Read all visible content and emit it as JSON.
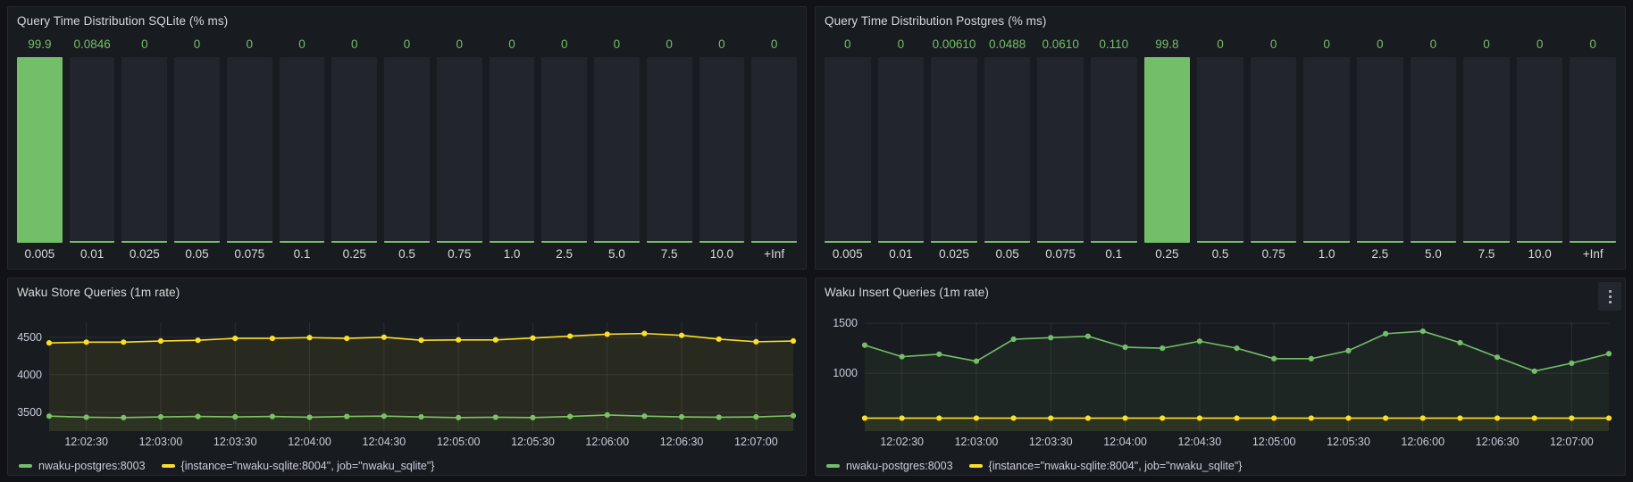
{
  "colors": {
    "page_bg": "#111217",
    "panel_bg": "#181b1f",
    "panel_border": "#26282f",
    "bar_bg": "#22252b",
    "green": "#73bf69",
    "yellow": "#fade2a",
    "axis_text": "#ccccdc",
    "title_text": "#d8d9da",
    "grid": "rgba(204,204,220,0.10)"
  },
  "panels": [
    {
      "title": "Query Time Distribution SQLite (% ms)"
    },
    {
      "title": "Query Time Distribution Postgres (% ms)"
    },
    {
      "title": "Waku Store Queries (1m rate)"
    },
    {
      "title": "Waku Insert Queries (1m rate)"
    }
  ],
  "chart_data": [
    {
      "type": "bar",
      "title": "Query Time Distribution SQLite (% ms)",
      "categories": [
        "0.005",
        "0.01",
        "0.025",
        "0.05",
        "0.075",
        "0.1",
        "0.25",
        "0.5",
        "0.75",
        "1.0",
        "2.5",
        "5.0",
        "7.5",
        "10.0",
        "+Inf"
      ],
      "values": [
        99.9,
        0.0846,
        0,
        0,
        0,
        0,
        0,
        0,
        0,
        0,
        0,
        0,
        0,
        0,
        0
      ],
      "value_labels": [
        "99.9",
        "0.0846",
        "0",
        "0",
        "0",
        "0",
        "0",
        "0",
        "0",
        "0",
        "0",
        "0",
        "0",
        "0",
        "0"
      ],
      "ylim": [
        0,
        100
      ],
      "bar_color": "#73bf69",
      "value_label_color": "#73bf69"
    },
    {
      "type": "bar",
      "title": "Query Time Distribution Postgres (% ms)",
      "categories": [
        "0.005",
        "0.01",
        "0.025",
        "0.05",
        "0.075",
        "0.1",
        "0.25",
        "0.5",
        "0.75",
        "1.0",
        "2.5",
        "5.0",
        "7.5",
        "10.0",
        "+Inf"
      ],
      "values": [
        0,
        0,
        0.0061,
        0.0488,
        0.061,
        0.11,
        99.8,
        0,
        0,
        0,
        0,
        0,
        0,
        0,
        0
      ],
      "value_labels": [
        "0",
        "0",
        "0.00610",
        "0.0488",
        "0.0610",
        "0.110",
        "99.8",
        "0",
        "0",
        "0",
        "0",
        "0",
        "0",
        "0",
        "0"
      ],
      "ylim": [
        0,
        100
      ],
      "bar_color": "#73bf69",
      "value_label_color": "#73bf69"
    },
    {
      "type": "line",
      "title": "Waku Store Queries (1m rate)",
      "x_tick_labels": [
        "12:02:30",
        "12:03:00",
        "12:03:30",
        "12:04:00",
        "12:04:30",
        "12:05:00",
        "12:05:30",
        "12:06:00",
        "12:06:30",
        "12:07:00"
      ],
      "x_tick_indices": [
        1,
        3,
        5,
        7,
        9,
        11,
        13,
        15,
        17,
        19
      ],
      "yticks": [
        3500,
        4000,
        4500
      ],
      "ytick_labels": [
        "3500",
        "4000",
        "4500"
      ],
      "ylim": [
        3250,
        4700
      ],
      "legend_position": "bottom",
      "grid": true,
      "series": [
        {
          "name": "nwaku-postgres:8003",
          "color": "#73bf69",
          "values": [
            3450,
            3435,
            3430,
            3440,
            3445,
            3440,
            3445,
            3435,
            3445,
            3450,
            3440,
            3430,
            3435,
            3430,
            3445,
            3465,
            3450,
            3440,
            3435,
            3440,
            3455
          ]
        },
        {
          "name": "{instance=\"nwaku-sqlite:8004\", job=\"nwaku_sqlite\"}",
          "color": "#fade2a",
          "values": [
            4425,
            4435,
            4435,
            4450,
            4460,
            4485,
            4485,
            4495,
            4485,
            4500,
            4460,
            4465,
            4465,
            4490,
            4515,
            4540,
            4550,
            4525,
            4475,
            4440,
            4450
          ]
        }
      ]
    },
    {
      "type": "line",
      "title": "Waku Insert Queries (1m rate)",
      "x_tick_labels": [
        "12:02:30",
        "12:03:00",
        "12:03:30",
        "12:04:00",
        "12:04:30",
        "12:05:00",
        "12:05:30",
        "12:06:00",
        "12:06:30",
        "12:07:00"
      ],
      "x_tick_indices": [
        1,
        3,
        5,
        7,
        9,
        11,
        13,
        15,
        17,
        19
      ],
      "yticks": [
        1000,
        1500
      ],
      "ytick_labels": [
        "1000",
        "1500"
      ],
      "ylim": [
        420,
        1510
      ],
      "legend_position": "bottom",
      "grid": true,
      "series": [
        {
          "name": "nwaku-postgres:8003",
          "color": "#73bf69",
          "values": [
            1280,
            1165,
            1190,
            1120,
            1340,
            1355,
            1370,
            1260,
            1250,
            1320,
            1250,
            1145,
            1145,
            1225,
            1395,
            1420,
            1305,
            1160,
            1020,
            1100,
            1195
          ]
        },
        {
          "name": "{instance=\"nwaku-sqlite:8004\", job=\"nwaku_sqlite\"}",
          "color": "#fade2a",
          "values": [
            550,
            550,
            550,
            550,
            550,
            550,
            550,
            550,
            550,
            550,
            550,
            550,
            550,
            550,
            550,
            550,
            550,
            550,
            550,
            550,
            550
          ]
        }
      ]
    }
  ]
}
